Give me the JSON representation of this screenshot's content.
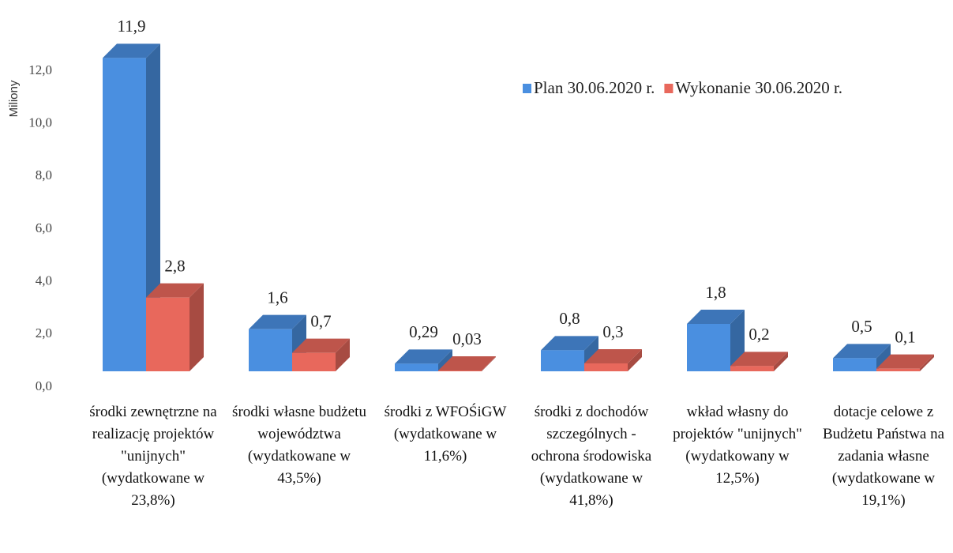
{
  "chart_data": {
    "type": "bar3d",
    "y_axis_label": "Miliony",
    "categories": [
      "środki zewnętrzne na realizację projektów \"unijnych\" (wydatkowane w 23,8%)",
      "środki własne budżetu województwa (wydatkowane w 43,5%)",
      "środki z WFOŚiGW (wydatkowane w 11,6%)",
      "środki z dochodów szczególnych - ochrona środowiska (wydatkowane w 41,8%)",
      "wkład własny do projektów \"unijnych\" (wydatkowany w 12,5%)",
      "dotacje celowe z Budżetu Państwa na zadania własne (wydatkowane w 19,1%)"
    ],
    "series": [
      {
        "name": "Plan 30.06.2020 r.",
        "color": "#4a8fe0",
        "values": [
          11.9,
          1.6,
          0.29,
          0.8,
          1.8,
          0.5
        ],
        "value_labels": [
          "11,9",
          "1,6",
          "0,29",
          "0,8",
          "1,8",
          "0,5"
        ]
      },
      {
        "name": "Wykonanie 30.06.2020 r.",
        "color": "#e8685c",
        "values": [
          2.8,
          0.7,
          0.03,
          0.3,
          0.2,
          0.1
        ],
        "value_labels": [
          "2,8",
          "0,7",
          "0,03",
          "0,3",
          "0,2",
          "0,1"
        ]
      }
    ],
    "ylim": [
      0,
      13.5
    ],
    "yticks": [
      {
        "value": 0,
        "label": "0,0"
      },
      {
        "value": 2,
        "label": "2,0"
      },
      {
        "value": 4,
        "label": "4,0"
      },
      {
        "value": 6,
        "label": "6,0"
      },
      {
        "value": 8,
        "label": "8,0"
      },
      {
        "value": 10,
        "label": "10,0"
      },
      {
        "value": 12,
        "label": "12,0"
      }
    ],
    "legend": "top-right"
  }
}
